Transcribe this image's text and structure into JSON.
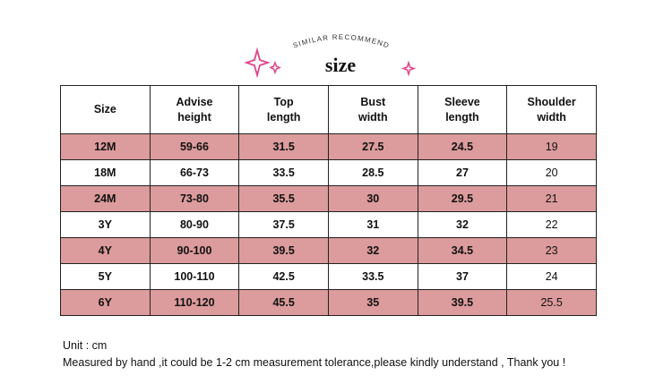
{
  "header": {
    "subtitle": "SIMILAR RECOMMEND",
    "title": "size"
  },
  "table": {
    "columns": [
      [
        "Size"
      ],
      [
        "Advise",
        "height"
      ],
      [
        "Top",
        "length"
      ],
      [
        "Bust",
        "width"
      ],
      [
        "Sleeve",
        "length"
      ],
      [
        "Shoulder",
        "width"
      ]
    ],
    "rows": [
      [
        "12M",
        "59-66",
        "31.5",
        "27.5",
        "24.5",
        "19"
      ],
      [
        "18M",
        "66-73",
        "33.5",
        "28.5",
        "27",
        "20"
      ],
      [
        "24M",
        "73-80",
        "35.5",
        "30",
        "29.5",
        "21"
      ],
      [
        "3Y",
        "80-90",
        "37.5",
        "31",
        "32",
        "22"
      ],
      [
        "4Y",
        "90-100",
        "39.5",
        "32",
        "34.5",
        "23"
      ],
      [
        "5Y",
        "100-110",
        "42.5",
        "33.5",
        "37",
        "24"
      ],
      [
        "6Y",
        "110-120",
        "45.5",
        "35",
        "39.5",
        "25.5"
      ]
    ]
  },
  "notes": [
    "Unit : cm",
    "Measured by hand ,it could be 1-2 cm measurement tolerance,please kindly understand , Thank you !"
  ]
}
